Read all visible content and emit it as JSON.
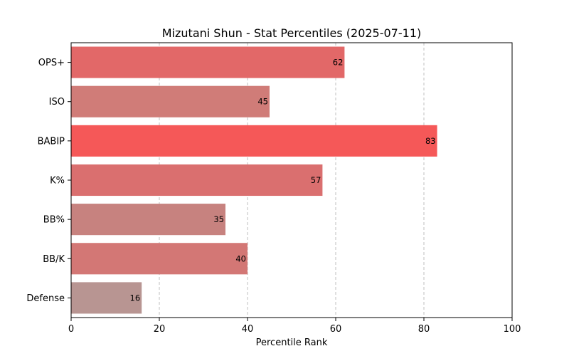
{
  "chart_data": {
    "type": "bar",
    "orientation": "horizontal",
    "title": "Mizutani Shun - Stat Percentiles (2025-07-11)",
    "xlabel": "Percentile Rank",
    "ylabel": "",
    "xlim": [
      0,
      100
    ],
    "xticks": [
      0,
      20,
      40,
      60,
      80,
      100
    ],
    "grid": "x-axis dashed",
    "categories": [
      "OPS+",
      "ISO",
      "BABIP",
      "K%",
      "BB%",
      "BB/K",
      "Defense"
    ],
    "values": [
      62,
      45,
      83,
      57,
      35,
      40,
      16
    ],
    "colors": [
      "#e26868",
      "#d07c78",
      "#f55858",
      "#da6f6f",
      "#c7827f",
      "#d37775",
      "#b89592"
    ],
    "data_labels": [
      "62",
      "45",
      "83",
      "57",
      "35",
      "40",
      "16"
    ]
  }
}
